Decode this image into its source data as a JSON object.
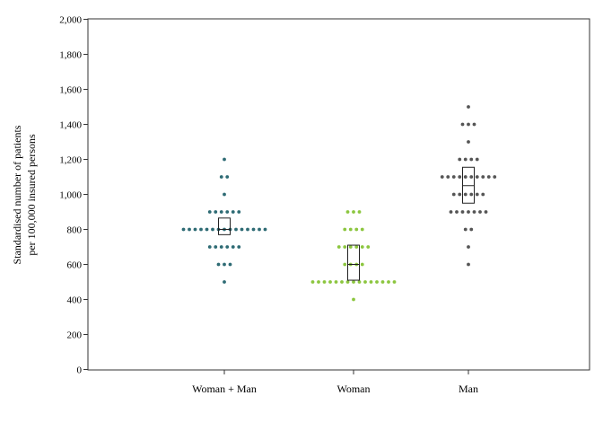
{
  "chart_data": {
    "type": "scatter",
    "ylabel_lines": [
      "Standardised number of patients",
      "per 100,000 insured persons"
    ],
    "ylim": [
      0,
      2000
    ],
    "yticks": [
      0,
      200,
      400,
      600,
      800,
      1000,
      1200,
      1400,
      1600,
      1800,
      2000
    ],
    "ytick_labels": [
      "0",
      "200",
      "400",
      "600",
      "800",
      "1,000",
      "1,200",
      "1,400",
      "1,600",
      "1,800",
      "2,000"
    ],
    "categories": [
      "Woman + Man",
      "Woman",
      "Man"
    ],
    "series": [
      {
        "category": "Woman + Man",
        "color": "#2e6b74",
        "dots": [
          {
            "y": 1200,
            "n": 1
          },
          {
            "y": 1100,
            "n": 2
          },
          {
            "y": 1000,
            "n": 1
          },
          {
            "y": 900,
            "n": 6
          },
          {
            "y": 800,
            "n": 15
          },
          {
            "y": 700,
            "n": 6
          },
          {
            "y": 600,
            "n": 3
          },
          {
            "y": 500,
            "n": 1
          }
        ],
        "box": {
          "q1": 770,
          "median": 800,
          "q3": 865
        }
      },
      {
        "category": "Woman",
        "color": "#8cc63f",
        "dots": [
          {
            "y": 900,
            "n": 3
          },
          {
            "y": 800,
            "n": 4
          },
          {
            "y": 700,
            "n": 6
          },
          {
            "y": 600,
            "n": 4
          },
          {
            "y": 500,
            "n": 15
          },
          {
            "y": 400,
            "n": 1
          }
        ],
        "box": {
          "q1": 510,
          "median": 600,
          "q3": 710
        }
      },
      {
        "category": "Man",
        "color": "#555555",
        "dots": [
          {
            "y": 1500,
            "n": 1
          },
          {
            "y": 1400,
            "n": 3
          },
          {
            "y": 1300,
            "n": 1
          },
          {
            "y": 1200,
            "n": 4
          },
          {
            "y": 1100,
            "n": 10
          },
          {
            "y": 1000,
            "n": 6
          },
          {
            "y": 900,
            "n": 7
          },
          {
            "y": 800,
            "n": 2
          },
          {
            "y": 700,
            "n": 1
          },
          {
            "y": 600,
            "n": 1
          }
        ],
        "box": {
          "q1": 950,
          "median": 1050,
          "q3": 1155
        }
      }
    ]
  }
}
